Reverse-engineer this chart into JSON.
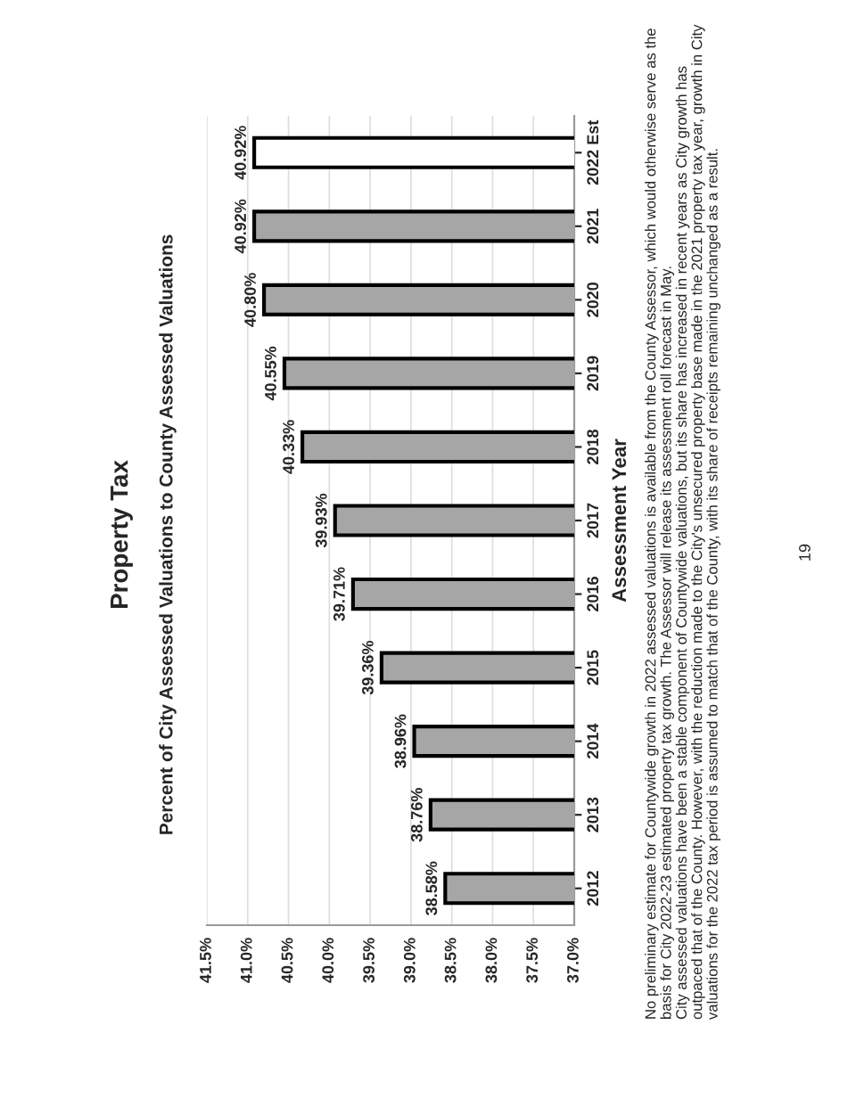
{
  "chart_data": {
    "type": "bar",
    "orientation": "horizontal",
    "title": "Property Tax",
    "subtitle": "Percent of City Assessed Valuations to County Assessed Valuations",
    "ylabel": "Assessment Year",
    "categories": [
      "2022 Est",
      "2021",
      "2020",
      "2019",
      "2018",
      "2017",
      "2016",
      "2015",
      "2014",
      "2013",
      "2012"
    ],
    "values": [
      40.92,
      40.92,
      40.8,
      40.55,
      40.33,
      39.93,
      39.71,
      39.36,
      38.96,
      38.76,
      38.58
    ],
    "colors": [
      "#ffffff",
      "#a6a6a6",
      "#a6a6a6",
      "#a6a6a6",
      "#a6a6a6",
      "#a6a6a6",
      "#a6a6a6",
      "#a6a6a6",
      "#a6a6a6",
      "#a6a6a6",
      "#a6a6a6"
    ],
    "value_labels": [
      "40.92%",
      "40.92%",
      "40.80%",
      "40.55%",
      "40.33%",
      "39.93%",
      "39.71%",
      "39.36%",
      "38.96%",
      "38.76%",
      "38.58%"
    ],
    "xlim": [
      41.5,
      37.0
    ],
    "xticks": [
      {
        "value": 41.5,
        "label": "41.5%"
      },
      {
        "value": 41.0,
        "label": "41.0%"
      },
      {
        "value": 40.5,
        "label": "40.5%"
      },
      {
        "value": 40.0,
        "label": "40.0%"
      },
      {
        "value": 39.5,
        "label": "39.5%"
      },
      {
        "value": 39.0,
        "label": "39.0%"
      },
      {
        "value": 38.5,
        "label": "38.5%"
      },
      {
        "value": 38.0,
        "label": "38.0%"
      },
      {
        "value": 37.5,
        "label": "37.5%"
      },
      {
        "value": 37.0,
        "label": "37.0%"
      }
    ],
    "grid": "x",
    "annotations": [
      "No preliminary estimate for Countywide growth in 2022 assessed valuations is available from the County Assessor, which would otherwise serve as the basis for City 2022-23 estimated property tax growth. The Assessor will release its assessment roll forecast in May.",
      "City assessed valuations have been a stable component of Countywide valuations, but its share has increased in recent years as City growth has outpaced that of the County. However, with the reduction made to the City's unsecured property base made in the 2021 property tax year, growth in City valuations for the 2022 tax period is assumed to match that of the County, with its share of receipts remaining unchanged as a result.",
      "19"
    ]
  }
}
